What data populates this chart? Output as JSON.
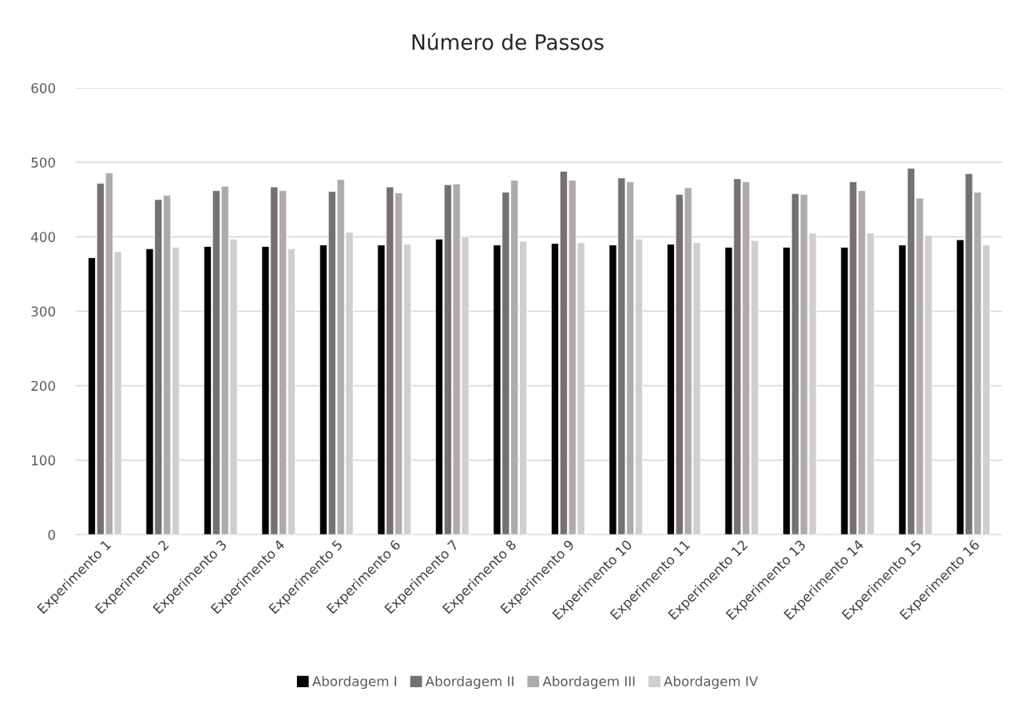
{
  "chart_data": {
    "type": "bar",
    "title": "Número de Passos",
    "categories": [
      "Experimento 1",
      "Experimento 2",
      "Experimento 3",
      "Experimento 4",
      "Experimento 5",
      "Experimento 6",
      "Experimento 7",
      "Experimento 8",
      "Experimento 9",
      "Experimento 10",
      "Experimento 11",
      "Experimento 12",
      "Experimento 13",
      "Experimento 14",
      "Experimento 15",
      "Experimento 16"
    ],
    "series": [
      {
        "name": "Abordagem I",
        "color": "#000000",
        "values": [
          372,
          384,
          387,
          387,
          389,
          389,
          397,
          389,
          391,
          389,
          390,
          386,
          386,
          386,
          389,
          396
        ]
      },
      {
        "name": "Abordagem II",
        "color": "#767171",
        "values": [
          472,
          450,
          462,
          467,
          461,
          467,
          470,
          460,
          488,
          479,
          457,
          478,
          458,
          474,
          492,
          485
        ]
      },
      {
        "name": "Abordagem III",
        "color": "#afabab",
        "values": [
          486,
          456,
          468,
          462,
          477,
          459,
          471,
          476,
          476,
          474,
          466,
          474,
          457,
          462,
          452,
          460
        ]
      },
      {
        "name": "Abordagem IV",
        "color": "#d0cece",
        "values": [
          380,
          386,
          397,
          384,
          406,
          390,
          400,
          394,
          392,
          397,
          392,
          395,
          405,
          405,
          402,
          389
        ]
      }
    ],
    "ylim": [
      0,
      600
    ],
    "yticks": [
      0,
      100,
      200,
      300,
      400,
      500,
      600
    ],
    "grid": "y",
    "legend": "bottom"
  }
}
